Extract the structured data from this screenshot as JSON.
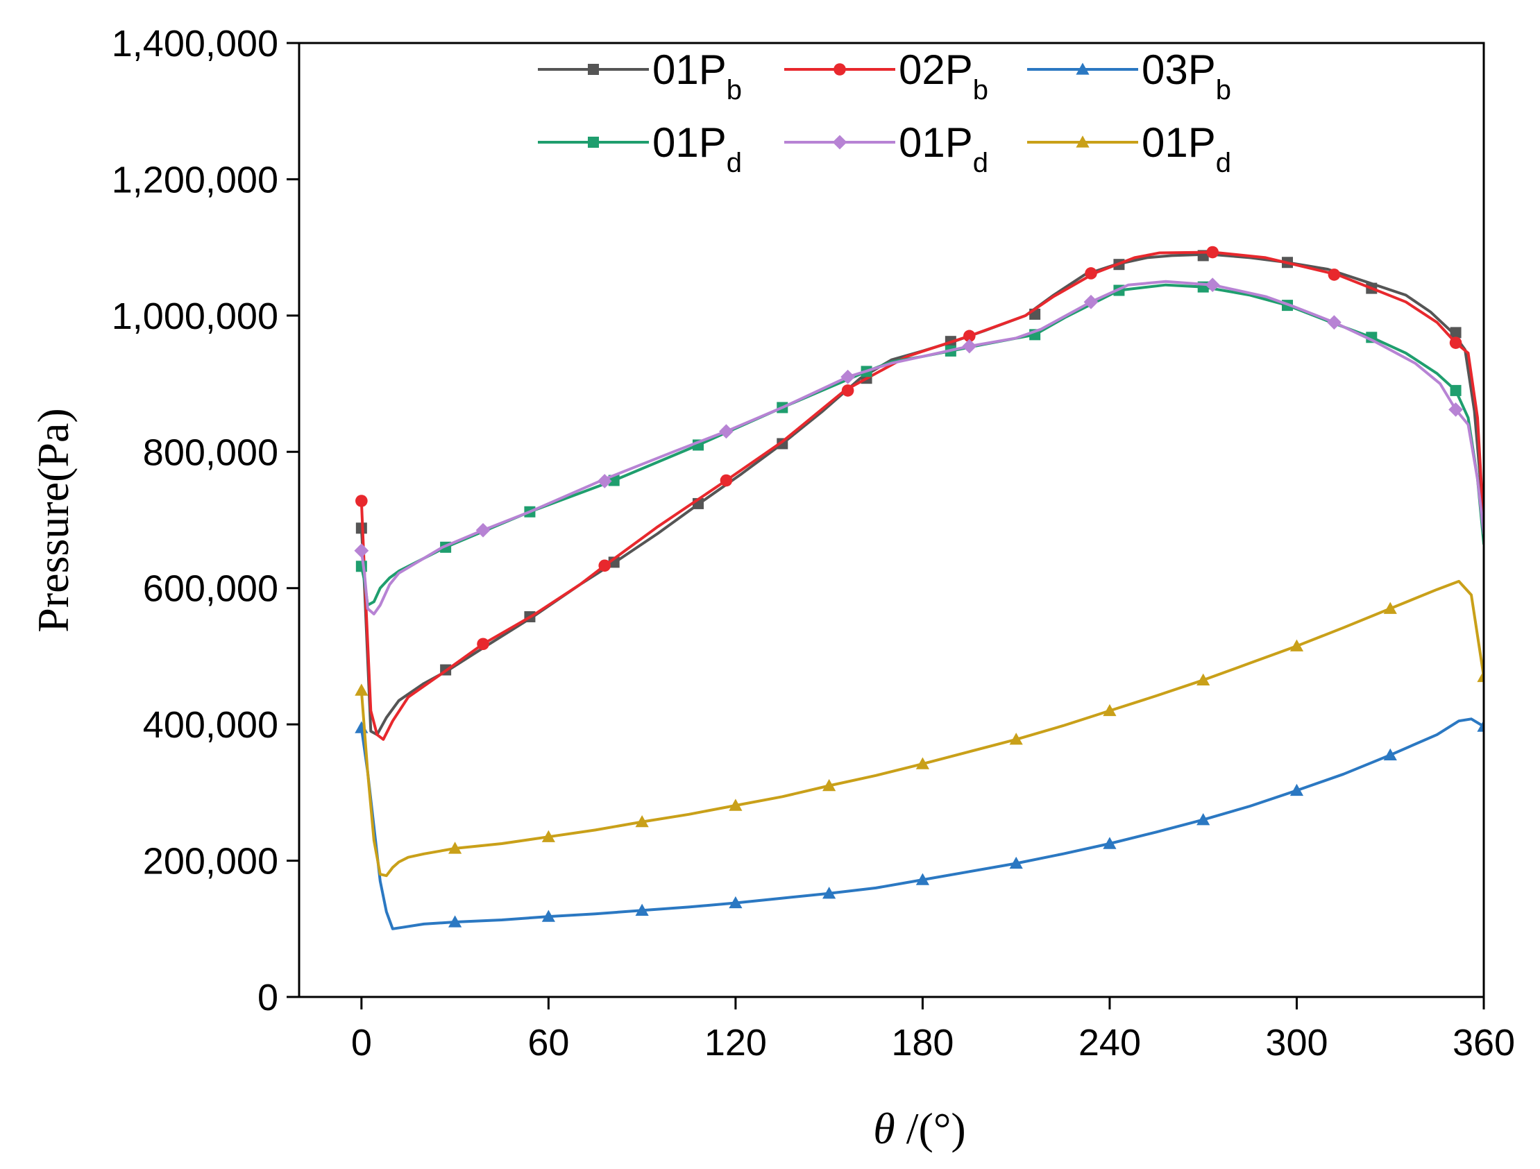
{
  "chart_data": {
    "type": "line",
    "title": "",
    "xlabel_symbol": "θ",
    "xlabel_unit": " /(°)",
    "ylabel": "Pressure(Pa)",
    "xlim": [
      -20,
      360
    ],
    "ylim": [
      0,
      1400000
    ],
    "xticks": [
      0,
      60,
      120,
      180,
      240,
      300,
      360
    ],
    "xtick_labels": [
      "0",
      "60",
      "120",
      "180",
      "240",
      "300",
      "360"
    ],
    "yticks": [
      0,
      200000,
      400000,
      600000,
      800000,
      1000000,
      1200000,
      1400000
    ],
    "ytick_labels": [
      "0",
      "200,000",
      "400,000",
      "600,000",
      "800,000",
      "1,000,000",
      "1,200,000",
      "1,400,000"
    ],
    "legend_position": "top-center",
    "series": [
      {
        "name": "01Pb",
        "label_main": "01P",
        "label_sub": "b",
        "color": "#555555",
        "marker": "square",
        "x": [
          0,
          1,
          3,
          5,
          8,
          12,
          20,
          28,
          40,
          55,
          70,
          82,
          95,
          108,
          122,
          135,
          148,
          160,
          170,
          180,
          190,
          200,
          213,
          222,
          232,
          242,
          252,
          260,
          272,
          285,
          297,
          310,
          322,
          335,
          343,
          350,
          354,
          357,
          360
        ],
        "y": [
          690000,
          600000,
          390000,
          385000,
          410000,
          435000,
          460000,
          480000,
          515000,
          558000,
          605000,
          640000,
          680000,
          723000,
          768000,
          812000,
          860000,
          908000,
          935000,
          948000,
          962000,
          978000,
          1000000,
          1030000,
          1060000,
          1075000,
          1085000,
          1088000,
          1090000,
          1085000,
          1078000,
          1068000,
          1050000,
          1030000,
          1005000,
          975000,
          950000,
          860000,
          700000
        ],
        "markers_x": [
          0,
          27,
          54,
          81,
          108,
          135,
          162,
          189,
          216,
          243,
          270,
          297,
          324,
          351
        ],
        "markers_y": [
          688000,
          480000,
          558000,
          638000,
          724000,
          812000,
          908000,
          962000,
          1002000,
          1075000,
          1088000,
          1078000,
          1040000,
          975000
        ]
      },
      {
        "name": "02Pb",
        "label_main": "02P",
        "label_sub": "b",
        "color": "#e8282d",
        "marker": "circle",
        "x": [
          0,
          1,
          3,
          5,
          7,
          10,
          15,
          25,
          39,
          55,
          70,
          78,
          95,
          117,
          135,
          155,
          165,
          175,
          195,
          213,
          222,
          235,
          248,
          256,
          273,
          290,
          313,
          335,
          345,
          351,
          355,
          358,
          360
        ],
        "y": [
          728000,
          620000,
          420000,
          385000,
          378000,
          405000,
          440000,
          472000,
          518000,
          560000,
          605000,
          633000,
          690000,
          758000,
          815000,
          890000,
          915000,
          940000,
          970000,
          1000000,
          1028000,
          1062000,
          1085000,
          1092000,
          1093000,
          1085000,
          1060000,
          1020000,
          990000,
          960000,
          945000,
          850000,
          690000
        ],
        "markers_x": [
          0,
          39,
          78,
          117,
          156,
          195,
          234,
          273,
          312,
          351
        ],
        "markers_y": [
          728000,
          518000,
          633000,
          758000,
          890000,
          970000,
          1062000,
          1093000,
          1060000,
          960000
        ]
      },
      {
        "name": "03Pb",
        "label_main": "03P",
        "label_sub": "b",
        "color": "#2b78c2",
        "marker": "triangle",
        "x": [
          0,
          2,
          4,
          6,
          8,
          10,
          13,
          20,
          30,
          45,
          60,
          75,
          90,
          105,
          120,
          135,
          150,
          165,
          180,
          195,
          210,
          225,
          240,
          255,
          270,
          285,
          300,
          315,
          330,
          345,
          352,
          356,
          360
        ],
        "y": [
          395000,
          330000,
          250000,
          170000,
          125000,
          100000,
          102000,
          107000,
          110000,
          113000,
          118000,
          122000,
          127000,
          132000,
          138000,
          145000,
          152000,
          160000,
          172000,
          184000,
          196000,
          210000,
          225000,
          242000,
          260000,
          280000,
          303000,
          327000,
          355000,
          385000,
          405000,
          408000,
          397000
        ],
        "markers_x": [
          0,
          30,
          60,
          90,
          120,
          150,
          180,
          210,
          240,
          270,
          300,
          330,
          360
        ],
        "markers_y": [
          395000,
          110000,
          118000,
          127000,
          138000,
          152000,
          172000,
          196000,
          225000,
          260000,
          303000,
          355000,
          397000
        ]
      },
      {
        "name": "01Pd",
        "label_main": "01P",
        "label_sub": "d",
        "color": "#1f9e6e",
        "marker": "square",
        "x": [
          0,
          1,
          2,
          4,
          6,
          9,
          12,
          27,
          54,
          81,
          108,
          135,
          162,
          170,
          180,
          189,
          200,
          216,
          226,
          243,
          258,
          270,
          285,
          297,
          310,
          324,
          335,
          345,
          351,
          355,
          358,
          360
        ],
        "y": [
          632000,
          610000,
          575000,
          580000,
          600000,
          615000,
          625000,
          660000,
          712000,
          758000,
          810000,
          865000,
          918000,
          932000,
          940000,
          948000,
          958000,
          972000,
          998000,
          1037000,
          1045000,
          1042000,
          1030000,
          1015000,
          992000,
          968000,
          945000,
          915000,
          890000,
          850000,
          760000,
          665000
        ],
        "markers_x": [
          0,
          27,
          54,
          81,
          108,
          135,
          162,
          189,
          216,
          243,
          270,
          297,
          324,
          351
        ],
        "markers_y": [
          632000,
          660000,
          712000,
          758000,
          810000,
          865000,
          918000,
          948000,
          972000,
          1037000,
          1042000,
          1015000,
          968000,
          890000
        ]
      },
      {
        "name": "01Pd",
        "label_main": "01P",
        "label_sub": "d",
        "color": "#b783d4",
        "marker": "diamond",
        "x": [
          0,
          1,
          2,
          4,
          6,
          9,
          12,
          26,
          39,
          54,
          78,
          100,
          117,
          135,
          156,
          170,
          180,
          195,
          210,
          218,
          234,
          246,
          258,
          273,
          290,
          298,
          312,
          325,
          338,
          346,
          351,
          355,
          358,
          360
        ],
        "y": [
          655000,
          620000,
          570000,
          562000,
          575000,
          605000,
          622000,
          660000,
          685000,
          712000,
          760000,
          800000,
          830000,
          865000,
          910000,
          930000,
          940000,
          955000,
          967000,
          980000,
          1020000,
          1045000,
          1050000,
          1045000,
          1028000,
          1015000,
          990000,
          962000,
          930000,
          900000,
          862000,
          840000,
          760000,
          680000
        ],
        "markers_x": [
          0,
          39,
          78,
          117,
          156,
          195,
          234,
          273,
          312,
          351
        ],
        "markers_y": [
          655000,
          685000,
          757000,
          830000,
          910000,
          955000,
          1020000,
          1045000,
          990000,
          862000
        ]
      },
      {
        "name": "01Pd",
        "label_main": "01P",
        "label_sub": "d",
        "color": "#c9a019",
        "marker": "triangle",
        "x": [
          0,
          2,
          4,
          6,
          8,
          10,
          12,
          15,
          20,
          30,
          45,
          60,
          75,
          90,
          105,
          120,
          135,
          150,
          165,
          180,
          195,
          210,
          225,
          240,
          255,
          270,
          285,
          300,
          315,
          330,
          345,
          352,
          356,
          360
        ],
        "y": [
          450000,
          330000,
          230000,
          180000,
          178000,
          190000,
          198000,
          205000,
          210000,
          218000,
          225000,
          235000,
          245000,
          257000,
          268000,
          281000,
          294000,
          310000,
          325000,
          342000,
          360000,
          378000,
          398000,
          420000,
          442000,
          465000,
          490000,
          515000,
          542000,
          570000,
          598000,
          610000,
          590000,
          470000
        ],
        "markers_x": [
          0,
          30,
          60,
          90,
          120,
          150,
          180,
          210,
          240,
          270,
          300,
          330,
          360
        ],
        "markers_y": [
          450000,
          218000,
          235000,
          257000,
          281000,
          310000,
          342000,
          378000,
          420000,
          465000,
          515000,
          570000,
          470000
        ]
      }
    ]
  }
}
